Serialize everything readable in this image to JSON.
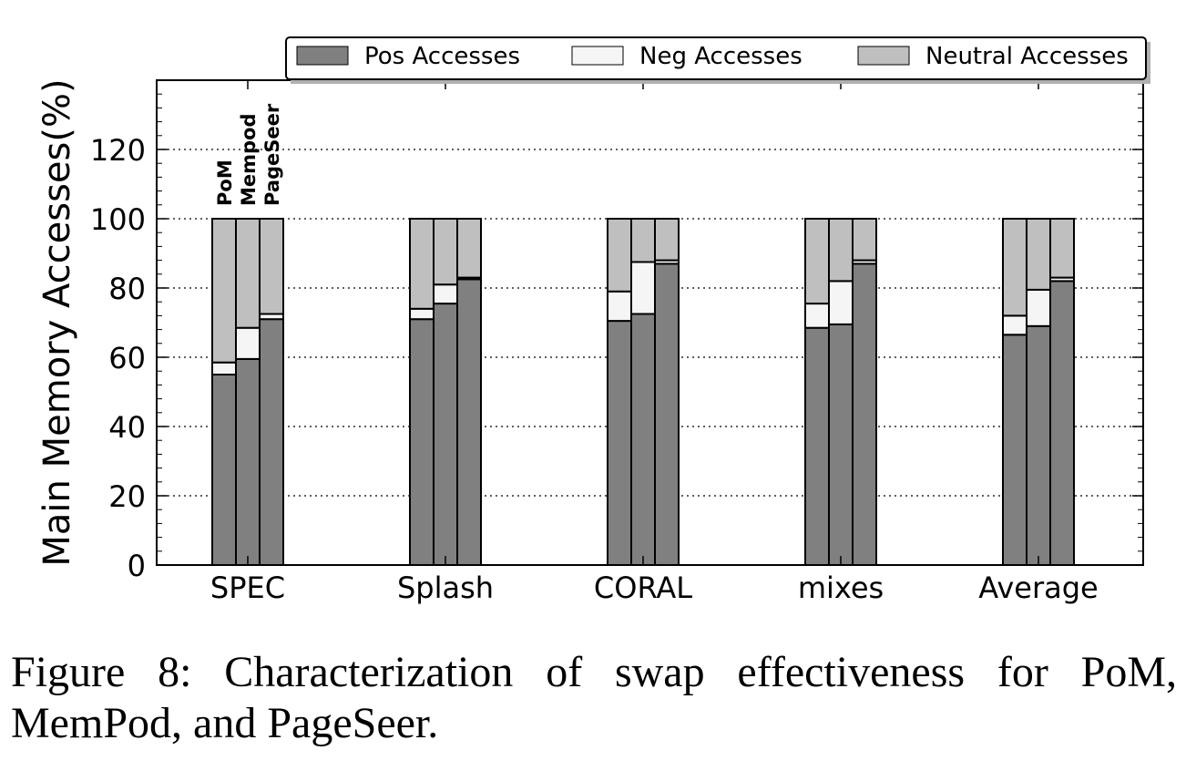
{
  "chart_data": {
    "type": "bar",
    "stacked": true,
    "ylabel": "Main Memory Accesses(%)",
    "xlabel": "",
    "ylim": [
      0,
      140
    ],
    "yticks": [
      0,
      20,
      40,
      60,
      80,
      100,
      120
    ],
    "grid": "horizontal dotted",
    "legend_position": "top",
    "categories": [
      "SPEC",
      "Splash",
      "CORAL",
      "mixes",
      "Average"
    ],
    "bar_labels": [
      "PoM",
      "Mempod",
      "PageSeer"
    ],
    "series": [
      {
        "name": "Pos Accesses",
        "color": "#808080",
        "values": [
          [
            55,
            59.5,
            71
          ],
          [
            71,
            75.5,
            82.5
          ],
          [
            70.5,
            72.5,
            87
          ],
          [
            68.5,
            69.5,
            87
          ],
          [
            66.5,
            69,
            82
          ]
        ]
      },
      {
        "name": "Neg Accesses",
        "color": "#f5f5f5",
        "values": [
          [
            3.5,
            9,
            1.5
          ],
          [
            3,
            5.5,
            0.5
          ],
          [
            8.5,
            15,
            1
          ],
          [
            7,
            12.5,
            1
          ],
          [
            5.5,
            10.5,
            1
          ]
        ]
      },
      {
        "name": "Neutral Accesses",
        "color": "#bfbfbf",
        "values": [
          [
            41.5,
            31.5,
            27.5
          ],
          [
            26,
            19,
            17
          ],
          [
            21,
            12.5,
            12
          ],
          [
            24.5,
            18,
            12
          ],
          [
            28,
            20.5,
            17
          ]
        ]
      }
    ]
  },
  "caption": "Figure 8: Characterization of swap effectiveness for PoM, MemPod, and PageSeer."
}
